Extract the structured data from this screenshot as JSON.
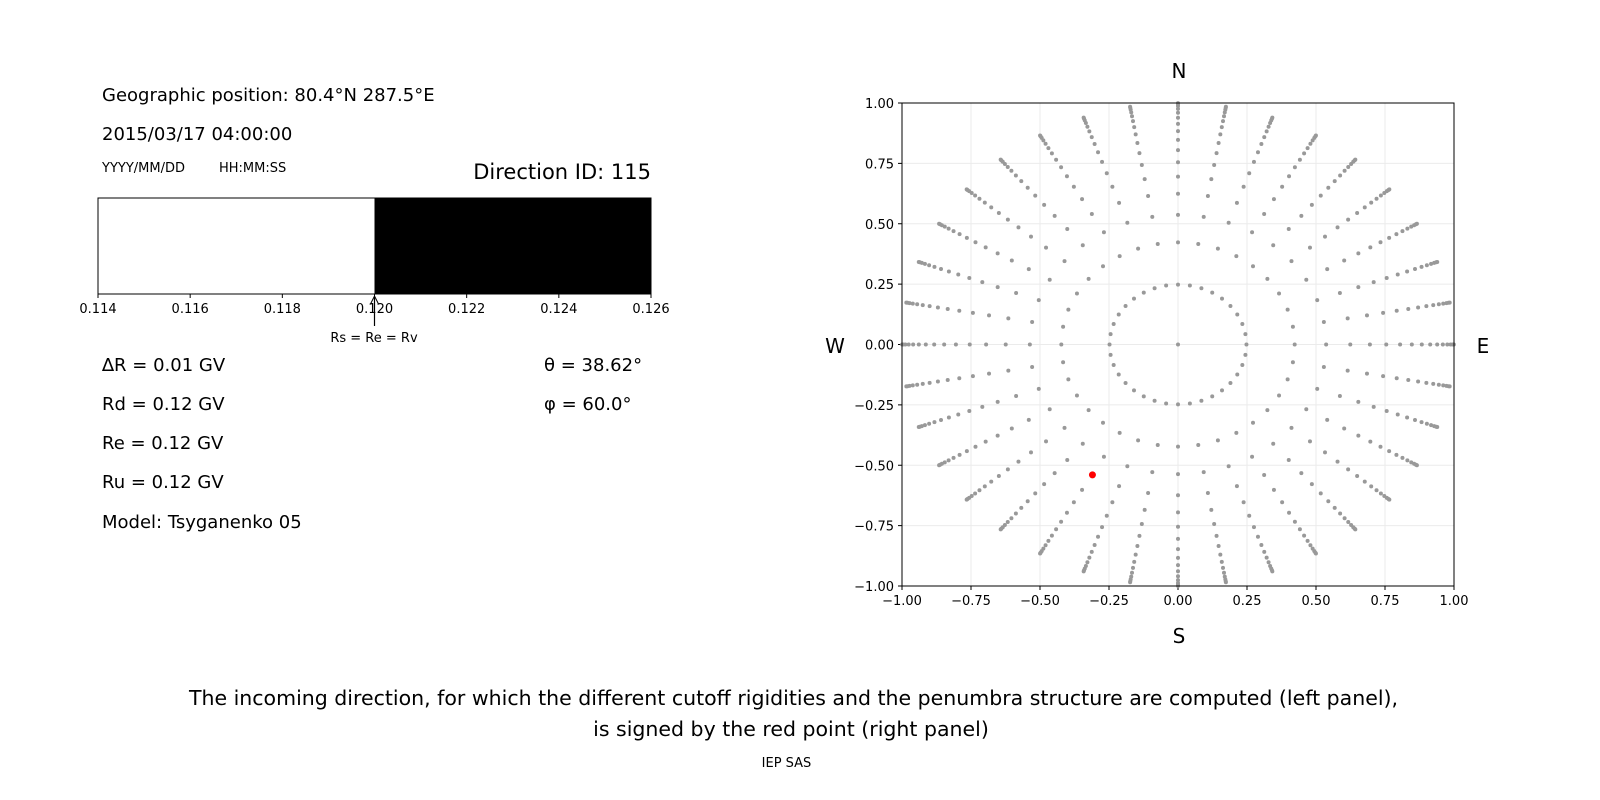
{
  "left_panel": {
    "geo_position": "Geographic position: 80.4°N 287.5°E",
    "datetime": "2015/03/17 04:00:00",
    "date_format_label": "YYYY/MM/DD",
    "time_format_label": "HH:MM:SS",
    "direction_id": "Direction ID: 115",
    "params": [
      "∆R = 0.01 GV",
      "Rd = 0.12 GV",
      "Re = 0.12 GV",
      "Ru = 0.12 GV",
      "Model: Tsyganenko 05"
    ],
    "theta_text": "θ = 38.62°",
    "phi_text": "φ = 60.0°"
  },
  "caption": {
    "line1": "The incoming direction, for which the different cutoff rigidities and the penumbra structure are computed (left panel),",
    "line2": "is signed by the red point (right panel)"
  },
  "footer": "IEP SAS",
  "chart_data": [
    {
      "type": "bar",
      "description_role": "penumbra",
      "xlim": [
        0.114,
        0.126
      ],
      "x_ticks": [
        "0.114",
        "0.116",
        "0.118",
        "0.120",
        "0.122",
        "0.124",
        "0.126"
      ],
      "segments": [
        {
          "from": 0.114,
          "to": 0.12,
          "color": "#ffffff"
        },
        {
          "from": 0.12,
          "to": 0.126,
          "color": "#000000"
        }
      ],
      "annotation": {
        "x": 0.12,
        "text": "Rs = Re = Rv"
      },
      "grid": false
    },
    {
      "type": "scatter",
      "xlim": [
        -1,
        1
      ],
      "ylim": [
        -1,
        1
      ],
      "x_ticks": [
        "−1.00",
        "−0.75",
        "−0.50",
        "−0.25",
        "0.00",
        "0.25",
        "0.50",
        "0.75",
        "1.00"
      ],
      "y_ticks": [
        "1.00",
        "0.75",
        "0.50",
        "0.25",
        "0.00",
        "−0.25",
        "−0.50",
        "−0.75",
        "−1.00"
      ],
      "compass": {
        "north": "N",
        "south": "S",
        "east": "E",
        "west": "W"
      },
      "grid": true,
      "grid_points": {
        "center": [
          0,
          0
        ],
        "cos_zenith_rings": [
          0.96875,
          0.90625,
          0.84375,
          0.78125,
          0.71875,
          0.65625,
          0.59375,
          0.53125,
          0.46875,
          0.40625,
          0.34375,
          0.28125,
          0.21875,
          0.15625,
          0.09375,
          0.03125
        ],
        "azimuth_step_deg": 10,
        "color": "#999999"
      },
      "selected_point": {
        "theta_deg": 38.62,
        "phi_deg": 60.0,
        "x": -0.31,
        "y": -0.54,
        "color": "#ff0000"
      }
    }
  ]
}
